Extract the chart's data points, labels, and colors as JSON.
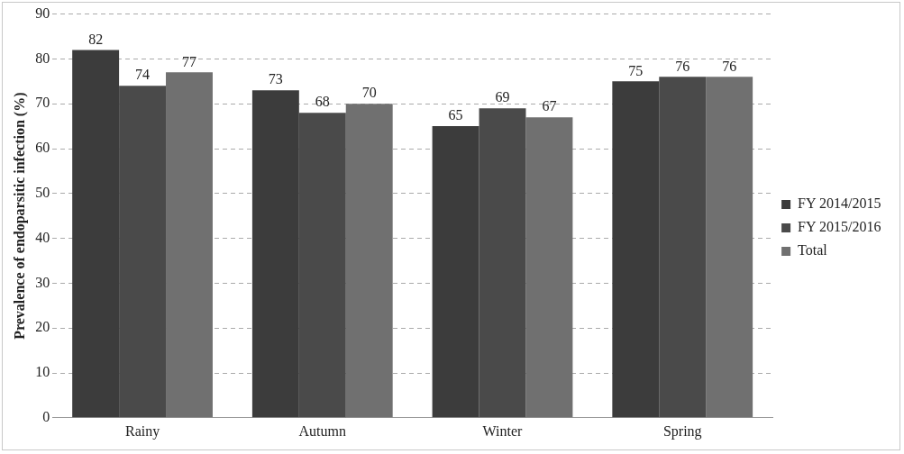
{
  "chart_data": {
    "type": "bar",
    "ylabel": "Prevalence of endoparsitic infection (%)",
    "categories": [
      "Rainy",
      "Autumn",
      "Winter",
      "Spring"
    ],
    "series": [
      {
        "name": "FY 2014/2015",
        "color": "#3c3c3c",
        "values": [
          82,
          73,
          65,
          75
        ]
      },
      {
        "name": "FY 2015/2016",
        "color": "#4a4a4a",
        "values": [
          74,
          68,
          69,
          76
        ]
      },
      {
        "name": "Total",
        "color": "#707070",
        "values": [
          77,
          70,
          67,
          76
        ]
      }
    ],
    "ylim": [
      0,
      90
    ],
    "yticks": [
      0,
      10,
      20,
      30,
      40,
      50,
      60,
      70,
      80,
      90
    ],
    "grid": "y",
    "legend": "right",
    "data_labels": true
  }
}
